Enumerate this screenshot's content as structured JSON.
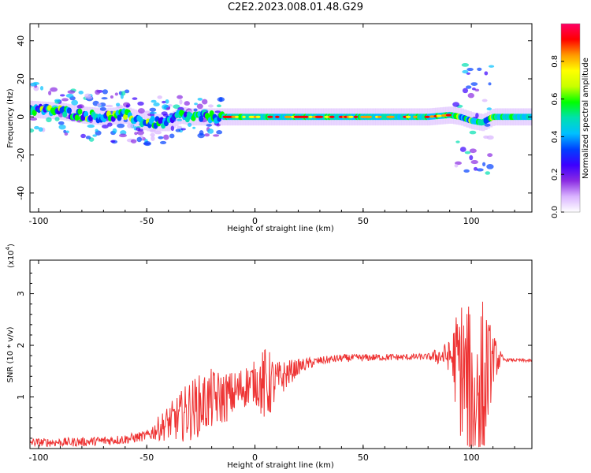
{
  "page": {
    "title": "C2E2.2023.008.01.48.G29"
  },
  "chart_data": [
    {
      "type": "heatmap",
      "title": "C2E2.2023.008.01.48.G29",
      "xlabel": "Height of straight line (km)",
      "ylabel": "Frequency (Hz)",
      "xlim": [
        -104,
        128
      ],
      "ylim": [
        -50,
        49
      ],
      "xticks": [
        -100,
        -50,
        0,
        50,
        100
      ],
      "yticks": [
        -40,
        -20,
        0,
        20,
        40
      ],
      "colorbar": {
        "label": "Normalized spectral amplitude",
        "range": [
          0.0,
          1.0
        ],
        "ticks": [
          0.0,
          0.2,
          0.4,
          0.6,
          0.8
        ],
        "tick_labels": [
          "0.0",
          "0.2",
          "0.4",
          "0.6",
          "0.8"
        ],
        "colors": [
          "#ffffff",
          "#d9b3ff",
          "#8a2be2",
          "#3b00ff",
          "#0040ff",
          "#00c0ff",
          "#00e0b0",
          "#00ff00",
          "#c8ff00",
          "#ffff00",
          "#ff9900",
          "#ff0000",
          "#ff0066"
        ]
      },
      "ridge": {
        "description_points": [
          [
            -104,
            4
          ],
          [
            -90,
            3
          ],
          [
            -80,
            1
          ],
          [
            -70,
            0
          ],
          [
            -60,
            1
          ],
          [
            -50,
            -3
          ],
          [
            -40,
            -3
          ],
          [
            -35,
            1
          ],
          [
            -30,
            0
          ],
          [
            -20,
            0
          ],
          [
            -10,
            0
          ],
          [
            0,
            0
          ],
          [
            20,
            0
          ],
          [
            40,
            0
          ],
          [
            60,
            0
          ],
          [
            80,
            0
          ],
          [
            90,
            1
          ],
          [
            95,
            0
          ],
          [
            100,
            -2
          ],
          [
            105,
            -3
          ],
          [
            110,
            0
          ],
          [
            128,
            0
          ]
        ],
        "scatter_regions": [
          {
            "x_from": -104,
            "x_to": -40,
            "y_spread": 14
          },
          {
            "x_from": -40,
            "x_to": -15,
            "y_spread": 10
          },
          {
            "x_from": 92,
            "x_to": 110,
            "y_spread": 30
          }
        ]
      }
    },
    {
      "type": "line",
      "xlabel": "Height of straight line (km)",
      "ylabel": "SNR (10 * v/v)",
      "y_multiplier": "(x10",
      "y_multiplier_exp": "4",
      "y_multiplier_close": ")",
      "xlim": [
        -104,
        128
      ],
      "ylim": [
        0,
        3.65
      ],
      "xticks": [
        -100,
        -50,
        0,
        50,
        100
      ],
      "yticks": [
        1,
        2,
        3
      ],
      "series": [
        {
          "color": "#ee3333",
          "envelope": [
            [
              -104,
              0.12
            ],
            [
              -90,
              0.12
            ],
            [
              -80,
              0.13
            ],
            [
              -70,
              0.15
            ],
            [
              -60,
              0.18
            ],
            [
              -50,
              0.25
            ],
            [
              -45,
              0.38
            ],
            [
              -40,
              0.5
            ],
            [
              -35,
              0.6
            ],
            [
              -30,
              0.75
            ],
            [
              -25,
              0.85
            ],
            [
              -20,
              0.95
            ],
            [
              -15,
              0.98
            ],
            [
              -10,
              1.05
            ],
            [
              -5,
              1.2
            ],
            [
              0,
              1.3
            ],
            [
              5,
              1.2
            ],
            [
              10,
              1.3
            ],
            [
              15,
              1.45
            ],
            [
              20,
              1.58
            ],
            [
              25,
              1.65
            ],
            [
              30,
              1.7
            ],
            [
              40,
              1.75
            ],
            [
              50,
              1.76
            ],
            [
              60,
              1.77
            ],
            [
              70,
              1.77
            ],
            [
              80,
              1.78
            ],
            [
              90,
              1.8
            ],
            [
              95,
              1.6
            ],
            [
              100,
              1.0
            ],
            [
              105,
              1.2
            ],
            [
              110,
              1.75
            ],
            [
              115,
              1.72
            ],
            [
              128,
              1.7
            ]
          ],
          "noise_amplitude": [
            [
              -104,
              0.08
            ],
            [
              -50,
              0.1
            ],
            [
              -40,
              0.35
            ],
            [
              -30,
              0.6
            ],
            [
              -20,
              0.6
            ],
            [
              -10,
              0.45
            ],
            [
              0,
              0.4
            ],
            [
              5,
              0.8
            ],
            [
              10,
              0.4
            ],
            [
              20,
              0.15
            ],
            [
              30,
              0.08
            ],
            [
              80,
              0.06
            ],
            [
              90,
              0.3
            ],
            [
              95,
              1.4
            ],
            [
              100,
              1.7
            ],
            [
              105,
              1.8
            ],
            [
              110,
              0.5
            ],
            [
              115,
              0.03
            ],
            [
              128,
              0.03
            ]
          ]
        }
      ]
    }
  ]
}
